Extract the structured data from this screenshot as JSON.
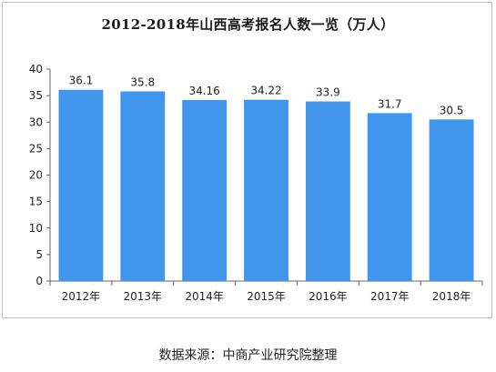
{
  "chart_data": {
    "type": "bar",
    "title": "2012-2018年山西高考报名人数一览（万人）",
    "categories": [
      "2012年",
      "2013年",
      "2014年",
      "2015年",
      "2016年",
      "2017年",
      "2018年"
    ],
    "values": [
      36.1,
      35.8,
      34.16,
      34.22,
      33.9,
      31.7,
      30.5
    ],
    "value_labels": [
      "36.1",
      "35.8",
      "34.16",
      "34.22",
      "33.9",
      "31.7",
      "30.5"
    ],
    "ylim": [
      0,
      40
    ],
    "yticks": [
      0,
      5,
      10,
      15,
      20,
      25,
      30,
      35,
      40
    ],
    "grid": false,
    "bar_color": "#3f96ea"
  },
  "footer": {
    "source": "数据来源：中商产业研究院整理"
  }
}
